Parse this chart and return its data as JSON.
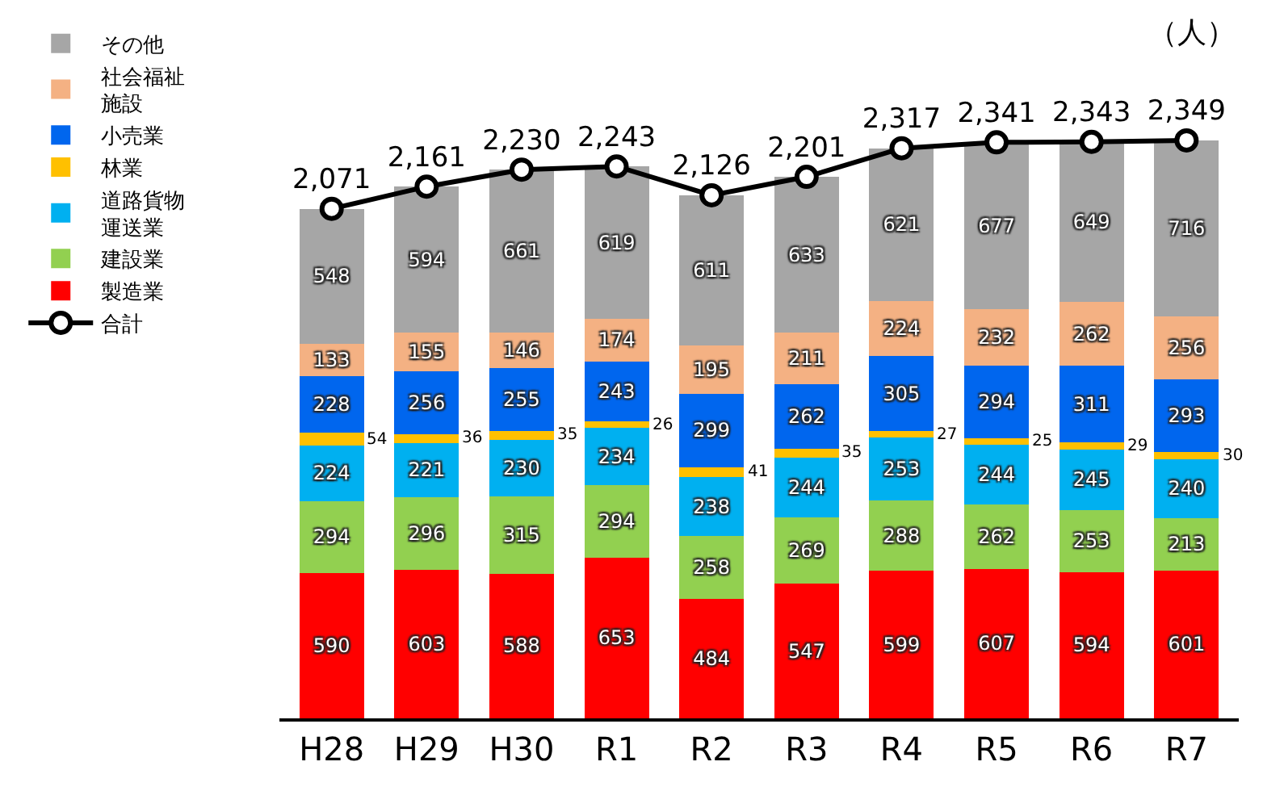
{
  "chart_data": {
    "type": "bar",
    "stacked": true,
    "data_labels": true,
    "legend": "left",
    "tick_labels": "x",
    "categories": [
      "H28",
      "H29",
      "H30",
      "R1",
      "R2",
      "R3",
      "R4",
      "R5",
      "R6",
      "R7"
    ],
    "annotations": [
      "（人）"
    ],
    "series": [
      {
        "name": "製造業",
        "color": "#ff0000",
        "values": [
          590,
          603,
          588,
          653,
          484,
          547,
          599,
          607,
          594,
          601
        ]
      },
      {
        "name": "建設業",
        "color": "#92d050",
        "values": [
          294,
          296,
          315,
          294,
          258,
          269,
          288,
          262,
          253,
          213
        ]
      },
      {
        "name": "道路貨物運送業",
        "color": "#00b0f0",
        "values": [
          224,
          221,
          230,
          234,
          238,
          244,
          253,
          244,
          245,
          240
        ]
      },
      {
        "name": "林業",
        "color": "#ffc000",
        "values": [
          54,
          36,
          35,
          26,
          41,
          35,
          27,
          25,
          29,
          30
        ]
      },
      {
        "name": "小売業",
        "color": "#0066ee",
        "values": [
          228,
          256,
          255,
          243,
          299,
          262,
          305,
          294,
          311,
          293
        ]
      },
      {
        "name": "社会福祉施設",
        "color": "#f4b183",
        "values": [
          133,
          155,
          146,
          174,
          195,
          211,
          224,
          232,
          262,
          256
        ]
      },
      {
        "name": "その他",
        "color": "#a6a6a6",
        "values": [
          548,
          594,
          661,
          619,
          611,
          633,
          621,
          677,
          649,
          716
        ]
      },
      {
        "name": "合計",
        "type": "line",
        "color": "#000000",
        "marker": "circle",
        "values": [
          2071,
          2161,
          2230,
          2243,
          2126,
          2201,
          2317,
          2341,
          2343,
          2349
        ],
        "value_labels": [
          "2,071",
          "2,161",
          "2,230",
          "2,243",
          "2,126",
          "2,201",
          "2,317",
          "2,341",
          "2,343",
          "2,349"
        ]
      }
    ]
  }
}
